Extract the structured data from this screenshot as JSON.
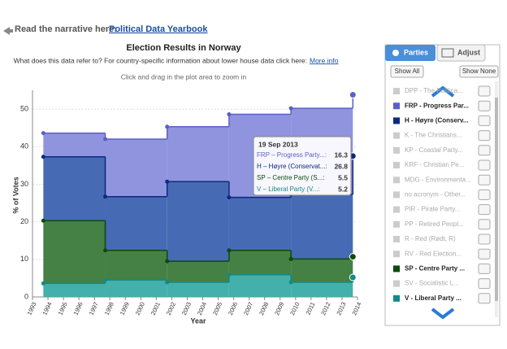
{
  "header": {
    "prefix": "Read the narrative here:",
    "link": "Political Data Yearbook"
  },
  "chart_data": {
    "type": "stacked-step-area",
    "title": "Election Results in Norway",
    "subtitle": "What does this data refer to? For country-specific information about lower house data click here:",
    "subtitle_link": "More info",
    "hint": "Click and drag in the plot area to zoom in",
    "ylabel": "% of Votes",
    "xlabel": "Year",
    "x": [
      1993.7,
      1997.7,
      2001.7,
      2005.7,
      2009.7,
      2013.7
    ],
    "series": [
      {
        "name": "FRP - Progress Party",
        "color": "#5b5fc7",
        "fill": "#8a8edc",
        "values": [
          6.3,
          15.3,
          14.6,
          22.1,
          22.9,
          16.3
        ]
      },
      {
        "name": "H - Høyre (Conservatives)",
        "color": "#0b2a80",
        "fill": "#3d62b0",
        "values": [
          17.0,
          14.3,
          21.2,
          14.1,
          17.2,
          26.8
        ]
      },
      {
        "name": "SP - Centre Party",
        "color": "#0b4a0b",
        "fill": "#3b7a3b",
        "values": [
          16.7,
          7.9,
          5.6,
          6.5,
          6.2,
          5.5
        ]
      },
      {
        "name": "V - Liberal Party",
        "color": "#138a84",
        "fill": "#3aaca6",
        "values": [
          3.6,
          4.5,
          3.9,
          5.9,
          3.9,
          5.2
        ]
      }
    ],
    "xlim": [
      1993,
      2014
    ],
    "xticks": [
      1993,
      1994,
      1995,
      1996,
      1997,
      1998,
      1999,
      2000,
      2001,
      2002,
      2003,
      2004,
      2005,
      2006,
      2007,
      2008,
      2009,
      2010,
      2011,
      2012,
      2013,
      2014
    ],
    "ylim": [
      0,
      55
    ],
    "yticks": [
      0,
      10,
      20,
      30,
      40,
      50
    ],
    "grid": true,
    "tooltip": {
      "date": "19 Sep 2013",
      "index": 5,
      "labels": [
        "FRP – Progress Party...:",
        "H – Høyre (Conservat...:",
        "SP – Centre Party (S...:",
        "V – Liberal Party (V...:"
      ]
    }
  },
  "sidebar": {
    "tabs": [
      "Parties",
      "Adjust"
    ],
    "buttons": [
      "Show All",
      "Show None"
    ],
    "parties": [
      {
        "label": "DPP - The Politica...",
        "color": "#cccccc",
        "active": false
      },
      {
        "label": "FRP - Progress Par...",
        "color": "#5b5fc7",
        "active": true
      },
      {
        "label": "H - Høyre (Conserv...",
        "color": "#0b2a80",
        "active": true
      },
      {
        "label": "K - The Christians...",
        "color": "#cccccc",
        "active": false
      },
      {
        "label": "KP - Coastal Party...",
        "color": "#cccccc",
        "active": false
      },
      {
        "label": "KRF - Christian Pe...",
        "color": "#cccccc",
        "active": false
      },
      {
        "label": "MDG - Environmenta...",
        "color": "#cccccc",
        "active": false
      },
      {
        "label": "no acronym - Other...",
        "color": "#cccccc",
        "active": false
      },
      {
        "label": "PIR - Pirate Party...",
        "color": "#cccccc",
        "active": false
      },
      {
        "label": "PP - Retired Peopl...",
        "color": "#cccccc",
        "active": false
      },
      {
        "label": "R - Red (Rødt, R)",
        "color": "#cccccc",
        "active": false
      },
      {
        "label": "RV - Red Election...",
        "color": "#cccccc",
        "active": false
      },
      {
        "label": "SP - Centre Party ...",
        "color": "#0b4a0b",
        "active": true
      },
      {
        "label": "SV - Socialistic L...",
        "color": "#cccccc",
        "active": false
      },
      {
        "label": "V - Liberal Party ...",
        "color": "#138a84",
        "active": true
      }
    ]
  }
}
